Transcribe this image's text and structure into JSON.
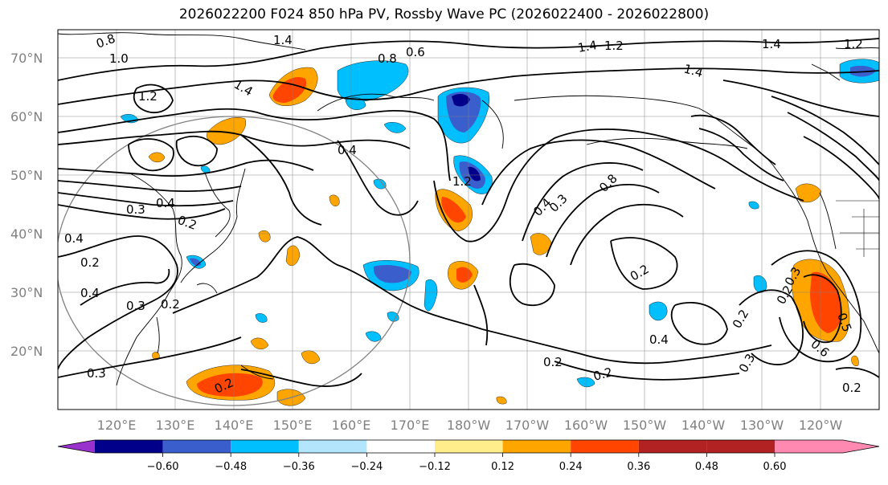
{
  "title": "2026022200 F024 850 hPa PV, Rossby Wave PC (2026022400 - 2026022800)",
  "lat_labels": [
    "70°N",
    "60°N",
    "50°N",
    "40°N",
    "30°N",
    "20°N"
  ],
  "lon_labels": [
    "120°E",
    "130°E",
    "140°E",
    "150°E",
    "160°E",
    "170°E",
    "180°W",
    "170°W",
    "160°W",
    "150°W",
    "140°W",
    "130°W",
    "120°W"
  ],
  "colorbar": {
    "bounds": [
      "−0.60",
      "−0.48",
      "−0.36",
      "−0.24",
      "−0.12",
      "0.12",
      "0.24",
      "0.36",
      "0.48",
      "0.60"
    ],
    "colors": [
      "#9932cc",
      "#00008b",
      "#3a5fcd",
      "#00bfff",
      "#b3e5fc",
      "#ffffff",
      "#ffec8b",
      "#ffa500",
      "#ff4500",
      "#b22222",
      "#ff89b0"
    ]
  },
  "contour_labels": [
    "0.8",
    "1.0",
    "1.4",
    "1.2",
    "1.4",
    "0.6",
    "0.8",
    "1.4",
    "1.4",
    "1.2",
    "1.4",
    "1.2",
    "0.4",
    "0.3",
    "0.4",
    "0.2",
    "0.4",
    "0.2",
    "0.4",
    "0.3",
    "0.2",
    "1.2",
    "0.3",
    "0.4",
    "0.8",
    "0.2",
    "0.4",
    "0.2",
    "0.2",
    "0.2",
    "0.3",
    "0.2",
    "0.3",
    "0.5",
    "0.6",
    "0.2",
    "0.3",
    "0.2"
  ],
  "shading_colors": {
    "dark_blue": "#00008b",
    "mid_blue": "#3a5fcd",
    "cyan": "#00bfff",
    "orange": "#ffa500",
    "red": "#ff4500"
  }
}
